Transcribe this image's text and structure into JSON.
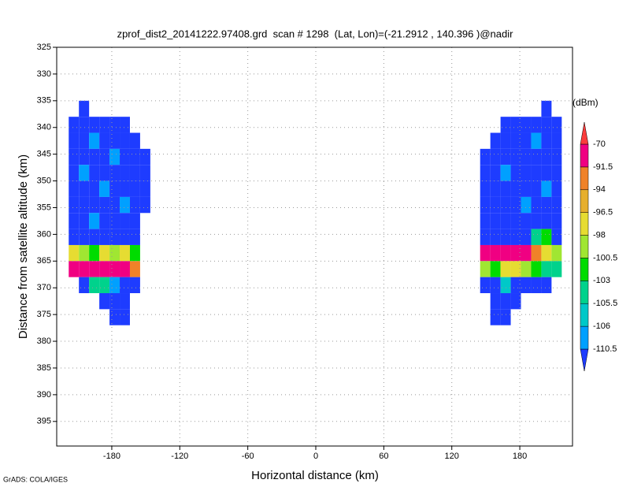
{
  "chart_data": {
    "type": "heatmap",
    "title": "zprof_dist2_20141222.97408.grd  scan # 1298  (Lat, Lon)=(-21.2912 , 140.396 )@nadir",
    "x_label": "Horizontal distance (km)",
    "y_label": "Distance from satellite altitude (km)",
    "credit": "GrADS: COLA/IGES",
    "xlim": [
      -228.6,
      226.5
    ],
    "xticks": [
      -180,
      -120,
      -60,
      0,
      60,
      120,
      180
    ],
    "ylim": [
      325,
      399.6
    ],
    "yticks": [
      325,
      330,
      335,
      340,
      345,
      350,
      355,
      360,
      365,
      370,
      375,
      380,
      385,
      390,
      395
    ],
    "y_inverted": true,
    "grid": true,
    "x_edges": [
      -218,
      -209,
      -200,
      -191,
      -182,
      -173,
      -164,
      -155,
      -146,
      145,
      154,
      163,
      172,
      181,
      190,
      199,
      208,
      217
    ],
    "y_edges": [
      335,
      338,
      341,
      344,
      347,
      350,
      353,
      356,
      359,
      362,
      365,
      368,
      371,
      374,
      377
    ],
    "values": [
      [
        null,
        -112,
        null,
        null,
        null,
        null,
        null,
        null,
        null,
        null,
        null,
        null,
        null,
        null,
        null,
        -112,
        null
      ],
      [
        -112,
        -112,
        -112,
        -112,
        -112,
        -112,
        null,
        null,
        null,
        null,
        null,
        -112,
        -112,
        -112,
        -112,
        -112,
        -112
      ],
      [
        -112,
        -112,
        -108,
        -112,
        -112,
        -112,
        -112,
        null,
        null,
        null,
        -112,
        -112,
        -112,
        -112,
        -108,
        -112,
        -112
      ],
      [
        -112,
        -112,
        -112,
        -112,
        -108,
        -112,
        -112,
        -112,
        null,
        -112,
        -112,
        -112,
        -112,
        -112,
        -112,
        -112,
        -112
      ],
      [
        -112,
        -108,
        -112,
        -112,
        -112,
        -112,
        -112,
        -112,
        null,
        -112,
        -112,
        -108,
        -112,
        -112,
        -112,
        -112,
        -112
      ],
      [
        -112,
        -112,
        -112,
        -108,
        -112,
        -112,
        -112,
        -112,
        null,
        -112,
        -112,
        -112,
        -112,
        -112,
        -112,
        -108,
        -112
      ],
      [
        -112,
        -112,
        -112,
        -112,
        -112,
        -108,
        -112,
        -112,
        null,
        -112,
        -112,
        -112,
        -112,
        -108,
        -112,
        -112,
        -112
      ],
      [
        -112,
        -112,
        -108,
        -112,
        -112,
        -112,
        -112,
        null,
        null,
        -112,
        -112,
        -112,
        -112,
        -112,
        -112,
        -112,
        -112
      ],
      [
        -112,
        -112,
        -112,
        -112,
        -112,
        -112,
        -112,
        null,
        null,
        -112,
        -112,
        -112,
        -112,
        -112,
        -104,
        -101,
        -112
      ],
      [
        -97,
        -99,
        -101,
        -97,
        -99,
        -97,
        -101,
        null,
        null,
        -85,
        -85,
        -85,
        -85,
        -85,
        -93,
        -97,
        -99
      ],
      [
        -85,
        -85,
        -85,
        -85,
        -85,
        -85,
        -93,
        null,
        null,
        -99,
        -101,
        -97,
        -97,
        -99,
        -101,
        -104,
        -104
      ],
      [
        null,
        -112,
        -104,
        -104,
        -108,
        -112,
        -112,
        null,
        null,
        -112,
        -112,
        -106,
        -112,
        -112,
        -112,
        -112,
        null
      ],
      [
        null,
        null,
        null,
        -112,
        -112,
        -112,
        null,
        null,
        null,
        null,
        -112,
        -112,
        -112,
        null,
        null,
        null,
        null
      ],
      [
        null,
        null,
        null,
        null,
        -112,
        -112,
        null,
        null,
        null,
        null,
        -112,
        -112,
        null,
        null,
        null,
        null,
        null
      ]
    ],
    "colorbar": {
      "unit": "(dBm)",
      "levels": [
        -110.5,
        -106,
        -105.5,
        -103,
        -100.5,
        -98,
        -96.5,
        -94,
        -91.5,
        -70
      ],
      "colors": [
        "#1e3cff",
        "#00a0ff",
        "#00c8c8",
        "#00d28c",
        "#00dc00",
        "#a0e632",
        "#e6dc32",
        "#e6af2d",
        "#f08228",
        "#f00082",
        "#fa3c3c"
      ]
    }
  }
}
